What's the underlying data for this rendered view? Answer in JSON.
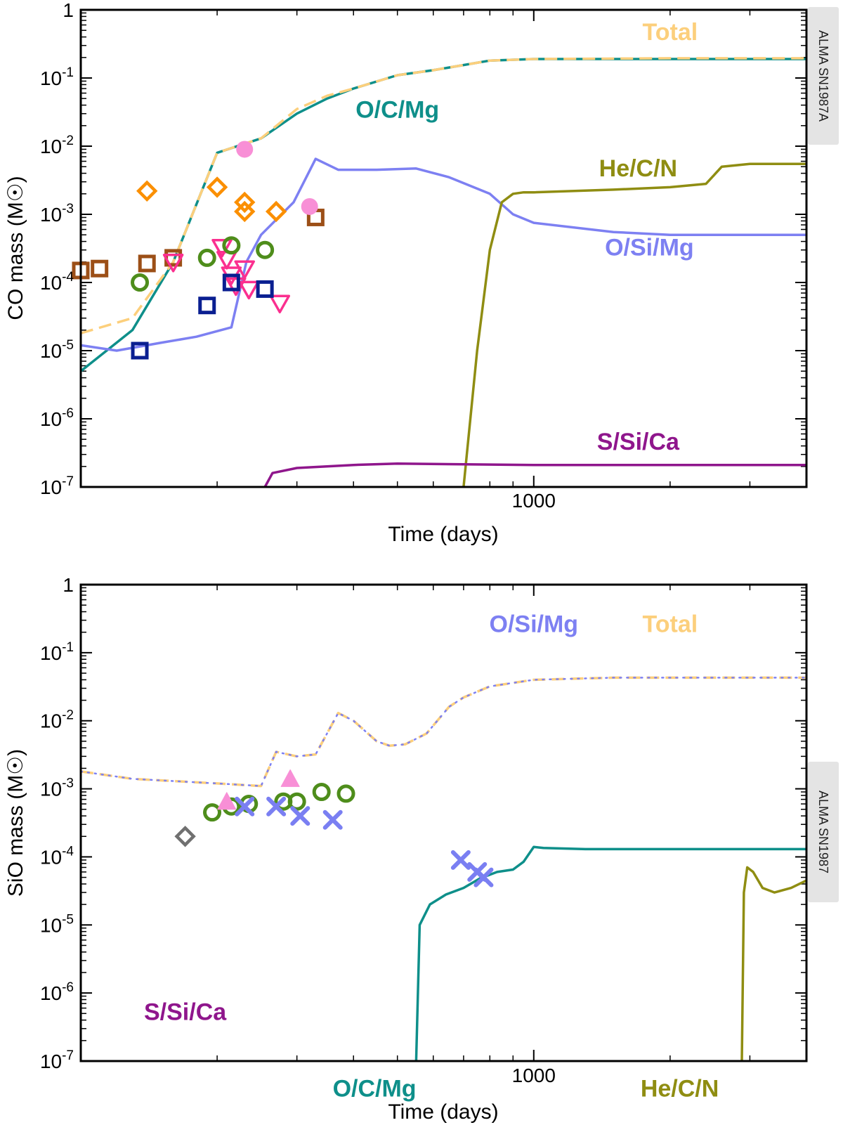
{
  "colors": {
    "total": "#FCCF7C",
    "ocmg": "#0E8F8A",
    "osimg": "#7D80F2",
    "hecn": "#8F8D12",
    "ssica": "#8F168C",
    "orange": "#FB8F00",
    "brown": "#9C4F17",
    "green": "#4E8D1B",
    "navy": "#0A1F91",
    "magenta": "#FB2F8F",
    "pink": "#F88FD6",
    "gray": "#707070",
    "periwinkle": "#7A7FF2",
    "sidebox": "#E4E4E4"
  },
  "chart_data": [
    {
      "type": "line",
      "panel": "top",
      "xlabel": "Time (days)",
      "ylabel": "CO mass (M☉)",
      "xscale": "log",
      "yscale": "log",
      "xlim": [
        100,
        4000
      ],
      "ylim": [
        1e-07,
        1
      ],
      "xticks": [
        {
          "value": 1000,
          "label": "1000"
        }
      ],
      "yticks": [
        {
          "value": 1,
          "base": "1",
          "exp": ""
        },
        {
          "value": 0.1,
          "base": "10",
          "exp": "-1"
        },
        {
          "value": 0.01,
          "base": "10",
          "exp": "-2"
        },
        {
          "value": 0.001,
          "base": "10",
          "exp": "-3"
        },
        {
          "value": 0.0001,
          "base": "10",
          "exp": "-4"
        },
        {
          "value": 1e-05,
          "base": "10",
          "exp": "-5"
        },
        {
          "value": 1e-06,
          "base": "10",
          "exp": "-6"
        },
        {
          "value": 1e-07,
          "base": "10",
          "exp": "-7"
        }
      ],
      "side_label": "ALMA SN1987A",
      "series": [
        {
          "name": "O/C/Mg",
          "colorKey": "ocmg",
          "dash": "solid",
          "x": [
            100,
            130,
            160,
            200,
            250,
            300,
            350,
            400,
            500,
            600,
            800,
            1000,
            2000,
            4000
          ],
          "y": [
            5e-06,
            2e-05,
            0.0002,
            0.008,
            0.013,
            0.03,
            0.05,
            0.07,
            0.11,
            0.13,
            0.18,
            0.19,
            0.19,
            0.19
          ]
        },
        {
          "name": "Total",
          "colorKey": "total",
          "dash": "dashed",
          "x": [
            100,
            130,
            160,
            200,
            250,
            300,
            350,
            400,
            500,
            600,
            800,
            1000,
            2000,
            4000
          ],
          "y": [
            1.8e-05,
            3e-05,
            0.0002,
            0.008,
            0.013,
            0.035,
            0.055,
            0.07,
            0.11,
            0.13,
            0.18,
            0.19,
            0.195,
            0.195
          ]
        },
        {
          "name": "O/Si/Mg",
          "colorKey": "osimg",
          "dash": "solid",
          "x": [
            100,
            120,
            150,
            180,
            215,
            232,
            250,
            295,
            330,
            370,
            450,
            550,
            650,
            800,
            900,
            1000,
            1500,
            2000,
            3000,
            4000
          ],
          "y": [
            1.2e-05,
            1e-05,
            1.3e-05,
            1.6e-05,
            2.2e-05,
            0.0002,
            0.0005,
            0.0015,
            0.0065,
            0.0045,
            0.0045,
            0.0047,
            0.0035,
            0.002,
            0.001,
            0.00075,
            0.00055,
            0.0005,
            0.0005,
            0.0005
          ]
        },
        {
          "name": "He/C/N",
          "colorKey": "hecn",
          "dash": "solid",
          "x": [
            700,
            750,
            800,
            850,
            900,
            950,
            1000,
            1500,
            2000,
            2400,
            2600,
            3000,
            4000
          ],
          "y": [
            1e-07,
            1e-05,
            0.0003,
            0.0015,
            0.002,
            0.0021,
            0.0021,
            0.0023,
            0.0025,
            0.0028,
            0.005,
            0.0055,
            0.0055
          ]
        },
        {
          "name": "S/Si/Ca",
          "colorKey": "ssica",
          "dash": "solid",
          "x": [
            255,
            265,
            300,
            400,
            500,
            700,
            1000,
            2000,
            4000
          ],
          "y": [
            1e-07,
            1.6e-07,
            1.9e-07,
            2.1e-07,
            2.2e-07,
            2.15e-07,
            2.1e-07,
            2.1e-07,
            2.1e-07
          ]
        }
      ],
      "labels": [
        {
          "text": "Total",
          "colorKey": "total",
          "x": 2000,
          "y": 0.36
        },
        {
          "text": "O/C/Mg",
          "colorKey": "ocmg",
          "x": 500,
          "y": 0.026
        },
        {
          "text": "He/C/N",
          "colorKey": "hecn",
          "x": 1700,
          "y": 0.0036
        },
        {
          "text": "O/Si/Mg",
          "colorKey": "osimg",
          "x": 1800,
          "y": 0.00025
        },
        {
          "text": "S/Si/Ca",
          "colorKey": "ssica",
          "x": 1700,
          "y": 3.5e-07
        }
      ],
      "observations": [
        {
          "marker": "square",
          "colorKey": "brown",
          "points": [
            [
              100,
              0.00015
            ],
            [
              110,
              0.00016
            ],
            [
              140,
              0.00019
            ],
            [
              160,
              0.00023
            ],
            [
              330,
              0.0009
            ]
          ]
        },
        {
          "marker": "diamond",
          "colorKey": "orange",
          "points": [
            [
              140,
              0.0022
            ],
            [
              200,
              0.0025
            ],
            [
              230,
              0.0015
            ],
            [
              230,
              0.0011
            ],
            [
              270,
              0.0011
            ]
          ]
        },
        {
          "marker": "triangle-down",
          "colorKey": "magenta",
          "points": [
            [
              160,
              0.0002
            ],
            [
              205,
              0.00033
            ],
            [
              210,
              0.00022
            ],
            [
              215,
              0.00013
            ],
            [
              220,
              9e-05
            ],
            [
              230,
              0.00016
            ],
            [
              235,
              8e-05
            ],
            [
              275,
              5e-05
            ]
          ]
        },
        {
          "marker": "circle",
          "colorKey": "green",
          "points": [
            [
              135,
              0.0001
            ],
            [
              190,
              0.00023
            ],
            [
              215,
              0.00035
            ],
            [
              255,
              0.0003
            ]
          ]
        },
        {
          "marker": "square",
          "colorKey": "navy",
          "points": [
            [
              135,
              1e-05
            ],
            [
              190,
              4.6e-05
            ],
            [
              215,
              0.0001
            ],
            [
              255,
              8e-05
            ]
          ]
        },
        {
          "marker": "filled-circle",
          "colorKey": "pink",
          "points": [
            [
              230,
              0.009
            ],
            [
              320,
              0.0013
            ]
          ]
        }
      ]
    },
    {
      "type": "line",
      "panel": "bottom",
      "xlabel": "Time (days)",
      "ylabel": "SiO mass (M☉)",
      "xscale": "log",
      "yscale": "log",
      "xlim": [
        100,
        4000
      ],
      "ylim": [
        1e-07,
        1
      ],
      "xticks": [
        {
          "value": 1000,
          "label": "1000"
        }
      ],
      "yticks": [
        {
          "value": 1,
          "base": "1",
          "exp": ""
        },
        {
          "value": 0.1,
          "base": "10",
          "exp": "-1"
        },
        {
          "value": 0.01,
          "base": "10",
          "exp": "-2"
        },
        {
          "value": 0.001,
          "base": "10",
          "exp": "-3"
        },
        {
          "value": 0.0001,
          "base": "10",
          "exp": "-4"
        },
        {
          "value": 1e-05,
          "base": "10",
          "exp": "-5"
        },
        {
          "value": 1e-06,
          "base": "10",
          "exp": "-6"
        },
        {
          "value": 1e-07,
          "base": "10",
          "exp": "-7"
        }
      ],
      "side_label": "ALMA SN1987",
      "series": [
        {
          "name": "Total",
          "colorKey": "total",
          "dash": "dashed",
          "x": [
            100,
            130,
            200,
            250,
            270,
            300,
            330,
            370,
            400,
            450,
            480,
            520,
            580,
            650,
            700,
            800,
            1000,
            1500,
            2000,
            4000
          ],
          "y": [
            0.0018,
            0.0014,
            0.0012,
            0.0011,
            0.0035,
            0.003,
            0.0032,
            0.013,
            0.01,
            0.005,
            0.0043,
            0.0045,
            0.0065,
            0.016,
            0.022,
            0.032,
            0.04,
            0.043,
            0.043,
            0.043
          ]
        },
        {
          "name": "O/Si/Mg",
          "colorKey": "osimg",
          "dash": "dotted",
          "x": [
            100,
            130,
            200,
            250,
            270,
            300,
            330,
            370,
            400,
            450,
            480,
            520,
            580,
            650,
            700,
            800,
            1000,
            1500,
            2000,
            4000
          ],
          "y": [
            0.0018,
            0.0014,
            0.0012,
            0.0011,
            0.0035,
            0.003,
            0.0032,
            0.013,
            0.01,
            0.005,
            0.0043,
            0.0045,
            0.0065,
            0.016,
            0.022,
            0.032,
            0.04,
            0.043,
            0.043,
            0.043
          ]
        },
        {
          "name": "O/C/Mg",
          "colorKey": "ocmg",
          "dash": "solid",
          "x": [
            550,
            560,
            590,
            640,
            700,
            760,
            830,
            900,
            950,
            1000,
            1050,
            1300,
            2000,
            4000
          ],
          "y": [
            1e-07,
            1e-05,
            2e-05,
            2.8e-05,
            3.5e-05,
            4.8e-05,
            6e-05,
            6.5e-05,
            8.5e-05,
            0.00014,
            0.000135,
            0.00013,
            0.00013,
            0.00013
          ]
        },
        {
          "name": "He/C/N",
          "colorKey": "hecn",
          "dash": "solid",
          "x": [
            2880,
            2910,
            2960,
            3050,
            3200,
            3400,
            3700,
            4000
          ],
          "y": [
            1e-07,
            3e-05,
            7e-05,
            6e-05,
            3.5e-05,
            3e-05,
            3.5e-05,
            4.5e-05
          ]
        }
      ],
      "labels": [
        {
          "text": "O/Si/Mg",
          "colorKey": "osimg",
          "x": 1000,
          "y": 0.2
        },
        {
          "text": "Total",
          "colorKey": "total",
          "x": 2000,
          "y": 0.2
        },
        {
          "text": "S/Si/Ca",
          "colorKey": "ssica",
          "x": 170,
          "y": 4e-07
        },
        {
          "text": "O/C/Mg",
          "colorKey": "ocmg",
          "x": 445,
          "y": 3e-08
        },
        {
          "text": "He/C/N",
          "colorKey": "hecn",
          "x": 2100,
          "y": 3e-08
        }
      ],
      "observations": [
        {
          "marker": "diamond",
          "colorKey": "gray",
          "points": [
            [
              170,
              0.0002
            ]
          ]
        },
        {
          "marker": "circle",
          "colorKey": "green",
          "points": [
            [
              195,
              0.00045
            ],
            [
              215,
              0.00055
            ],
            [
              235,
              0.0006
            ],
            [
              280,
              0.00065
            ],
            [
              300,
              0.00065
            ],
            [
              340,
              0.0009
            ],
            [
              385,
              0.00085
            ]
          ]
        },
        {
          "marker": "triangle-up",
          "colorKey": "pink",
          "points": [
            [
              210,
              0.00065
            ],
            [
              290,
              0.0014
            ]
          ]
        },
        {
          "marker": "x",
          "colorKey": "periwinkle",
          "points": [
            [
              230,
              0.00055
            ],
            [
              270,
              0.00055
            ],
            [
              305,
              0.0004
            ],
            [
              360,
              0.00035
            ],
            [
              690,
              9e-05
            ],
            [
              750,
              6e-05
            ],
            [
              775,
              5e-05
            ]
          ]
        }
      ]
    }
  ]
}
